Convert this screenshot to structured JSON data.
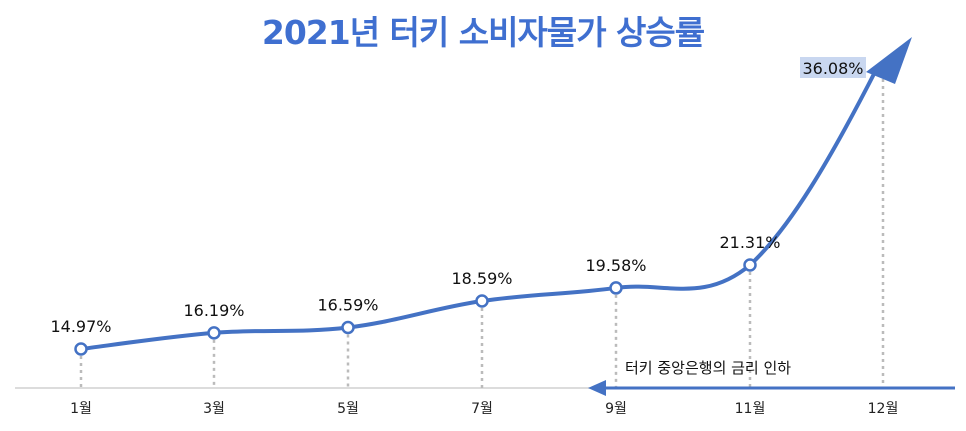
{
  "colors": {
    "accent": "#4472c4",
    "title": "#3f6fd0",
    "guide": "#bbbbbb",
    "axis": "#d0d0d0",
    "highlight": "#c9d7f0"
  },
  "chart_data": {
    "type": "line",
    "title": "2021년 터키 소비자물가 상승률",
    "categories": [
      "1월",
      "3월",
      "5월",
      "7월",
      "9월",
      "11월",
      "12월"
    ],
    "values": [
      14.97,
      16.19,
      16.59,
      18.59,
      19.58,
      21.31,
      36.08
    ],
    "data_labels": [
      "14.97%",
      "16.19%",
      "16.59%",
      "18.59%",
      "19.58%",
      "21.31%",
      "36.08%"
    ],
    "xlabel": "",
    "ylabel": "",
    "grid": false,
    "annotation": "터키 중앙은행의 금리 인하"
  }
}
